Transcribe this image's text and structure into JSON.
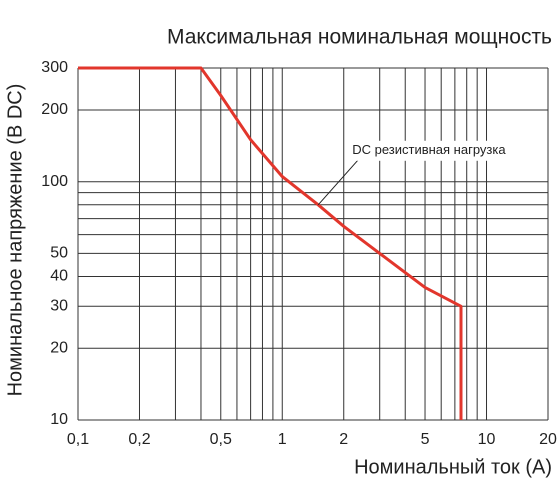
{
  "chart_data": {
    "type": "line",
    "title": "Максимальная номинальная мощность",
    "xlabel": "Номинальный ток (А)",
    "ylabel": "Номинальное напряжение (В DC)",
    "xscale": "log",
    "yscale": "log",
    "xlim": [
      0.1,
      20
    ],
    "ylim": [
      10,
      300
    ],
    "xticks": [
      {
        "value": 0.1,
        "label": "0,1"
      },
      {
        "value": 0.2,
        "label": "0,2"
      },
      {
        "value": 0.5,
        "label": "0,5"
      },
      1,
      2,
      5,
      10,
      20
    ],
    "yticks": [
      10,
      20,
      30,
      40,
      50,
      100,
      200,
      300
    ],
    "xminor": [
      0.3,
      0.4,
      0.6,
      0.7,
      0.8,
      0.9,
      3,
      4,
      6,
      7,
      8,
      9
    ],
    "yminor": [
      60,
      70,
      80,
      90
    ],
    "grid": true,
    "series": [
      {
        "name": "DC резистивная нагрузка",
        "color": "#e2362c",
        "x": [
          0.1,
          0.4,
          0.5,
          0.7,
          1,
          1.5,
          2,
          3,
          5,
          7.5,
          7.5
        ],
        "values": [
          300,
          300,
          230,
          150,
          105,
          80,
          65,
          50,
          36,
          30,
          10
        ]
      }
    ],
    "annotation": {
      "text": "DC резистивная нагрузка",
      "x": 1.5,
      "y": 80
    }
  }
}
